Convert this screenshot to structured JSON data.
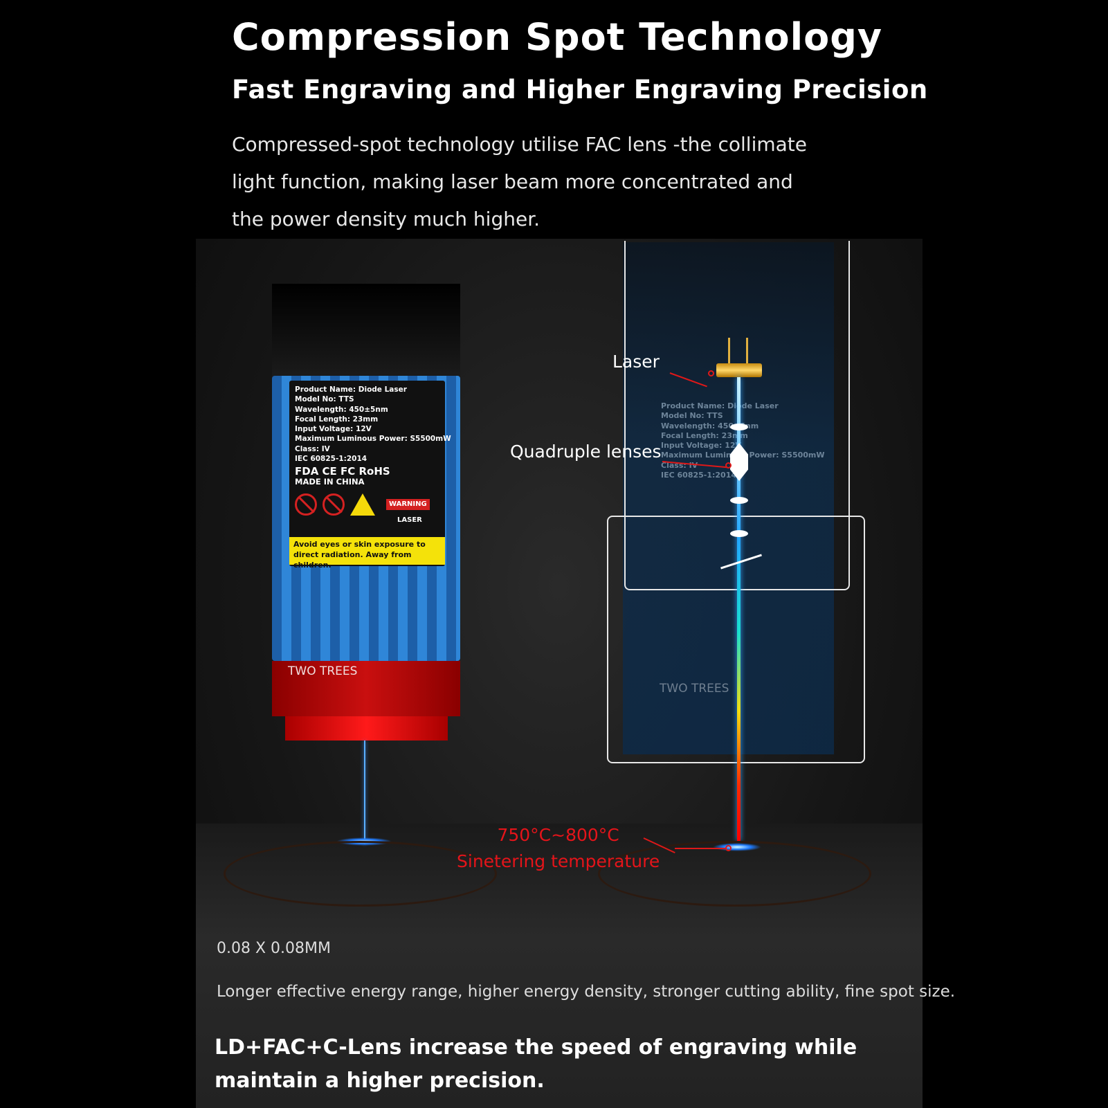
{
  "header": {
    "title": "Compression Spot Technology",
    "subtitle": "Fast Engraving and Higher Engraving Precision",
    "description": "Compressed-spot technology utilise FAC lens -the collimate light function, making laser beam more concentrated and the power density much higher."
  },
  "module_label": {
    "lines": [
      "Product Name:  Diode Laser",
      "Model No:  TTS",
      "Wavelength:  450±5nm",
      "Focal Length:  23mm",
      "Input Voltage:  12V",
      "Maximum Luminous Power: S5500mW",
      "Class: IV",
      "IEC 60825-1:2014"
    ],
    "certifications": "FDA CE FC RoHS",
    "made_in": "MADE IN CHINA",
    "warning": "WARNING",
    "laser": "LASER",
    "caution": "Avoid eyes or skin exposure to direct radiation. Away from children.",
    "logo_text": "TWO TREES"
  },
  "brand": "TWO TREES",
  "callouts": {
    "laser": "Laser",
    "lenses": "Quadruple lenses",
    "temperature": "750°C~800°C",
    "temperature_label": "Sinetering temperature"
  },
  "spot_size": "0.08 X 0.08MM",
  "benefits": "Longer effective energy range, higher energy density, stronger cutting ability, fine spot size.",
  "footer": "LD+FAC+C-Lens increase the speed of engraving while maintain a higher precision.",
  "colors": {
    "module_blue": "#2f86d8",
    "module_red": "#c90f0f",
    "callout_red": "#e5141a",
    "label_yellow": "#f4e20a"
  }
}
